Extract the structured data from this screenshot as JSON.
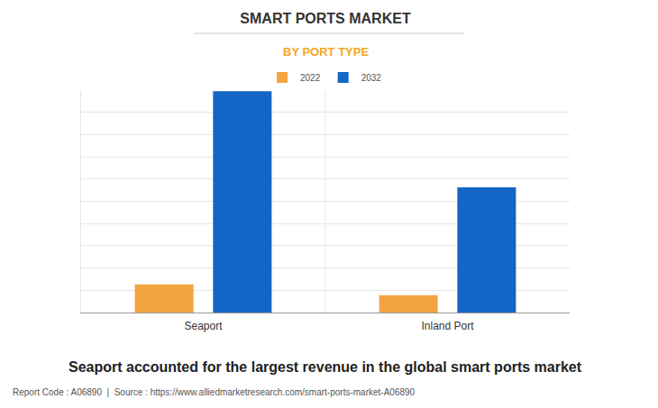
{
  "chart_data": {
    "type": "bar",
    "title": "SMART PORTS MARKET",
    "subtitle": "BY PORT TYPE",
    "categories": [
      "Seaport",
      "Inland Port"
    ],
    "series": [
      {
        "name": "2022",
        "color": "#f4a342",
        "values": [
          1.27,
          0.78
        ]
      },
      {
        "name": "2032",
        "color": "#1366c5",
        "values": [
          9.95,
          5.63
        ]
      }
    ],
    "ylim": [
      0,
      10
    ],
    "yticks": [
      0,
      1,
      2,
      3,
      4,
      5,
      6,
      7,
      8,
      9,
      10
    ],
    "grid": true,
    "legend": "top",
    "tick_labels": "x",
    "caption": "Seaport accounted for the largest revenue in the global smart ports market",
    "source_note": "Report Code : A06890  |  Source : https://www.alliedmarketresearch.com/smart-ports-market-A06890"
  }
}
